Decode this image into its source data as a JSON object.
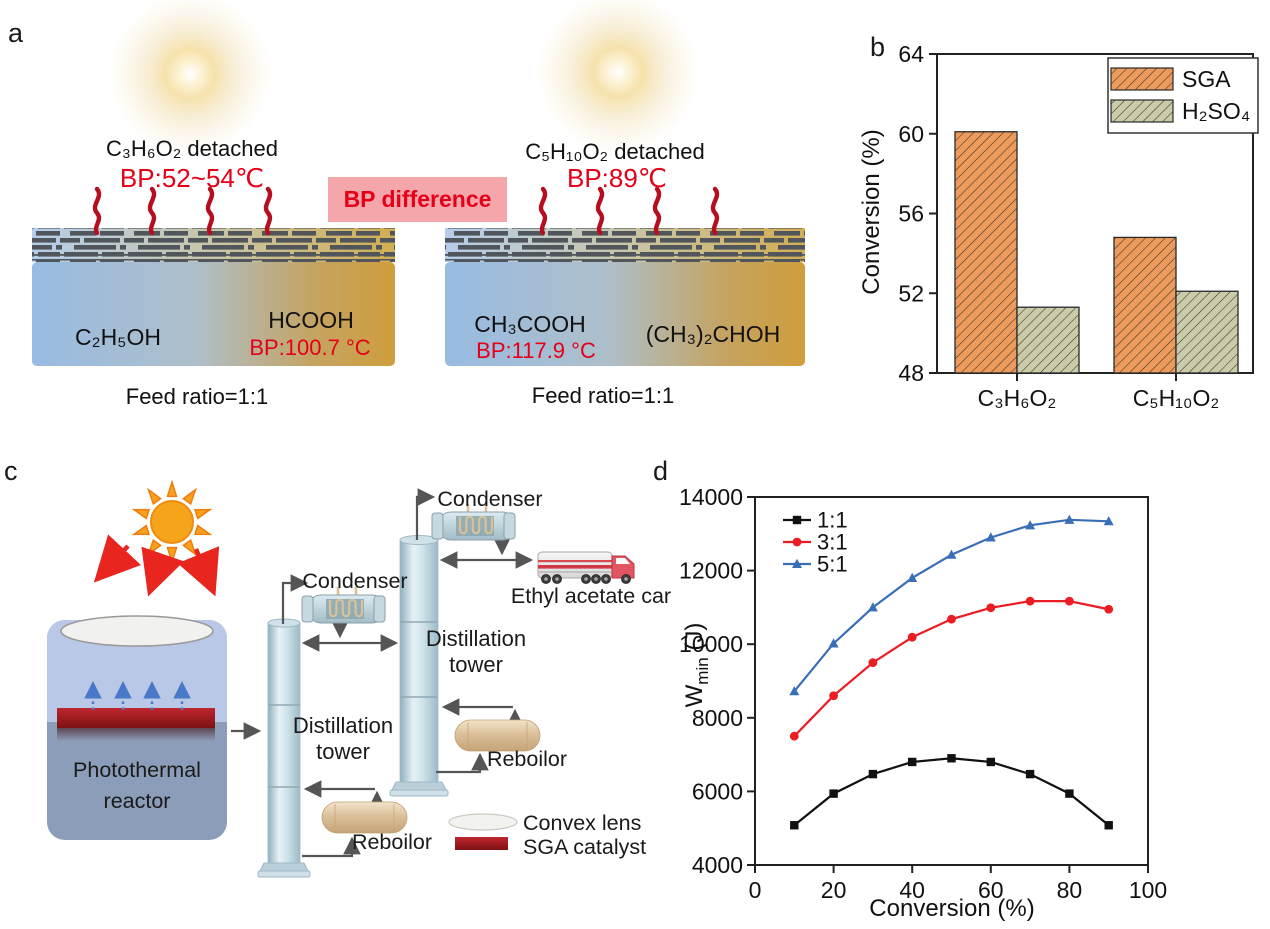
{
  "figure": {
    "panel_labels": {
      "a": "a",
      "b": "b",
      "c": "c",
      "d": "d"
    }
  },
  "panel_a": {
    "left": {
      "detached": "C₃H₆O₂ detached",
      "bp_detached": "BP:52~54℃",
      "liquid_left": "C₂H₅OH",
      "liquid_right": "HCOOH",
      "liquid_right_bp": "BP:100.7 °C",
      "feed_ratio": "Feed ratio=1:1"
    },
    "bp_difference_label": "BP difference",
    "right": {
      "detached": "C₅H₁₀O₂ detached",
      "bp_detached": "BP:89℃",
      "liquid_left": "CH₃COOH",
      "liquid_left_bp": "BP:117.9 °C",
      "liquid_right": "(CH₃)₂CHOH",
      "feed_ratio": "Feed ratio=1:1"
    },
    "colors": {
      "red_text": "#e50019",
      "pink_box": "#f5a6ab",
      "vapor_squiggle": "#b60e1e"
    }
  },
  "panel_c": {
    "reactor_label_line1": "Photothermal",
    "reactor_label_line2": "reactor",
    "condenser_top_label": "Condenser",
    "condenser_left_label": "Condenser",
    "tower_left_label_line1": "Distillation",
    "tower_left_label_line2": "tower",
    "tower_right_label_line1": "Distillation",
    "tower_right_label_line2": "tower",
    "reboiler_right_label": "Reboilor",
    "reboiler_bottom_label": "Reboilor",
    "truck_label": "Ethyl acetate car",
    "legend": {
      "convex_lens": "Convex lens",
      "sga_catalyst": "SGA catalyst"
    }
  },
  "chart_data": [
    {
      "id": "panel_b",
      "type": "bar",
      "categories": [
        "C₃H₆O₂",
        "C₅H₁₀O₂"
      ],
      "series": [
        {
          "name": "SGA",
          "values": [
            60.1,
            54.8
          ],
          "color": "#ec9b5c"
        },
        {
          "name": "H₂SO₄",
          "values": [
            51.3,
            52.1
          ],
          "color": "#c9cba9"
        }
      ],
      "ylabel": "Conversion (%)",
      "ylim": [
        48,
        64
      ],
      "yticks": [
        48,
        52,
        56,
        60,
        64
      ],
      "hatch": "diagonal",
      "legend_position": "top-right",
      "grid": false
    },
    {
      "id": "panel_d",
      "type": "line",
      "x": [
        10,
        20,
        30,
        40,
        50,
        60,
        70,
        80,
        90
      ],
      "series": [
        {
          "name": "1:1",
          "color": "#111111",
          "marker": "square",
          "values": [
            5080,
            5940,
            6470,
            6800,
            6900,
            6800,
            6470,
            5940,
            5080
          ]
        },
        {
          "name": "3:1",
          "color": "#ec1c24",
          "marker": "circle",
          "values": [
            7500,
            8600,
            9500,
            10190,
            10680,
            10990,
            11170,
            11170,
            10950
          ]
        },
        {
          "name": "5:1",
          "color": "#3a6fb8",
          "marker": "triangle",
          "values": [
            8720,
            10020,
            11000,
            11800,
            12430,
            12900,
            13230,
            13380,
            13340
          ]
        }
      ],
      "xlabel": "Conversion (%)",
      "ylabel_main": "W",
      "ylabel_sub": "min",
      "ylabel_unit": " (J)",
      "xlim": [
        0,
        100
      ],
      "ylim": [
        4000,
        14000
      ],
      "xticks": [
        0,
        20,
        40,
        60,
        80,
        100
      ],
      "yticks": [
        4000,
        6000,
        8000,
        10000,
        12000,
        14000
      ],
      "legend_position": "top-left",
      "grid": false
    }
  ]
}
